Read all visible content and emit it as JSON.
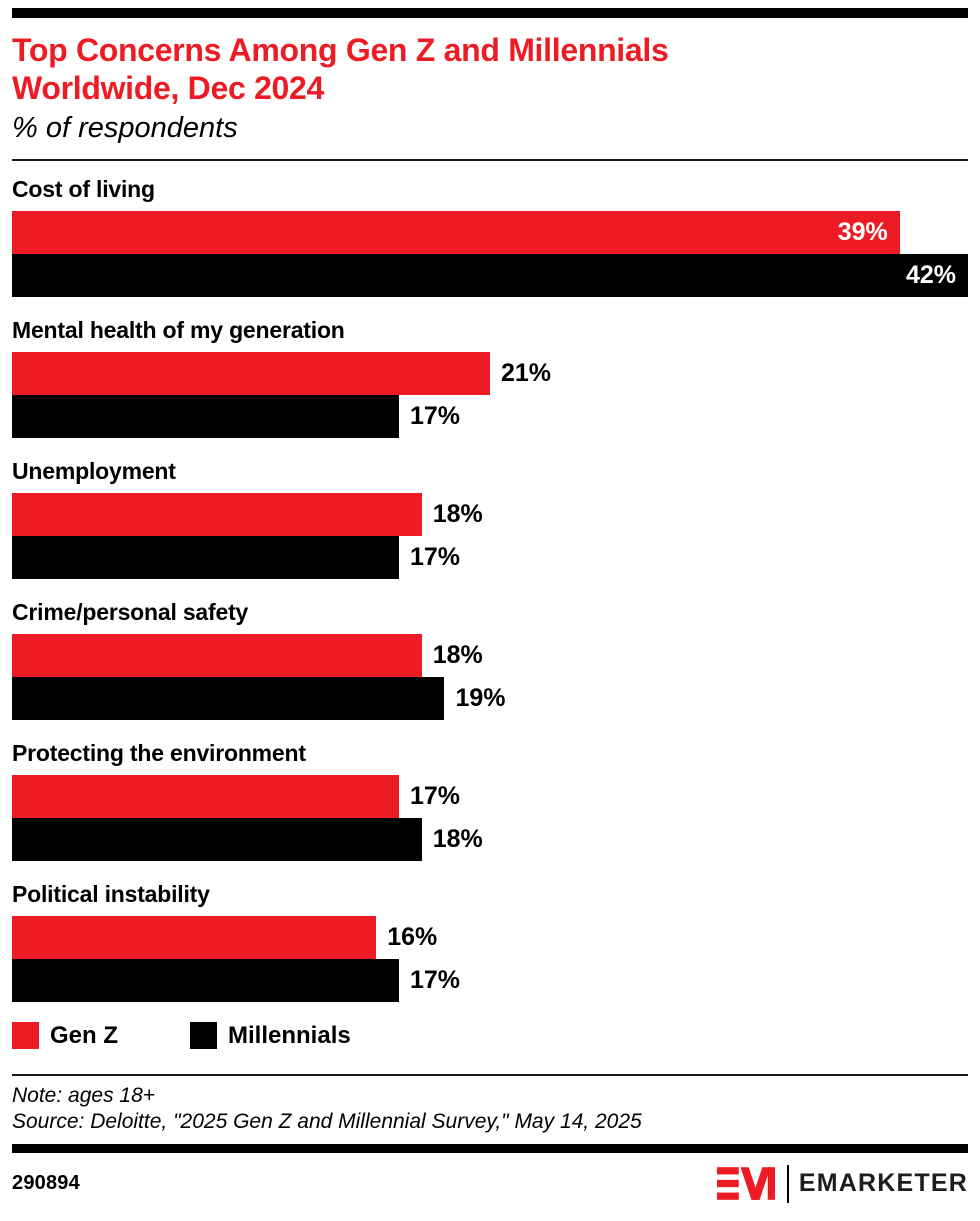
{
  "header": {
    "title_lines": [
      "Top Concerns Among Gen Z and Millennials",
      "Worldwide, Dec 2024"
    ],
    "subtitle": "% of respondents"
  },
  "chart_data": {
    "type": "bar",
    "orientation": "horizontal",
    "unit": "%",
    "title": "Top Concerns Among Gen Z and Millennials Worldwide, Dec 2024",
    "subtitle": "% of respondents",
    "categories": [
      "Cost of living",
      "Mental health of my generation",
      "Unemployment",
      "Crime/personal safety",
      "Protecting the environment",
      "Political instability"
    ],
    "series": [
      {
        "name": "Gen Z",
        "color": "#ED1C24",
        "values": [
          39,
          21,
          18,
          18,
          17,
          16
        ]
      },
      {
        "name": "Millennials",
        "color": "#000000",
        "values": [
          42,
          17,
          17,
          19,
          18,
          17
        ]
      }
    ],
    "xlim": [
      0,
      42
    ],
    "grid": false,
    "value_labels": "bar-end",
    "legend_position": "bottom-left"
  },
  "legend": {
    "items": [
      {
        "label": "Gen Z",
        "color": "#ED1C24"
      },
      {
        "label": "Millennials",
        "color": "#000000"
      }
    ]
  },
  "footnotes": {
    "note": "Note: ages 18+",
    "source": "Source: Deloitte, \"2025 Gen Z and Millennial Survey,\" May 14, 2025"
  },
  "footer": {
    "chart_id": "290894",
    "brand": "EMARKETER"
  },
  "colors": {
    "accent_red": "#ED1C24",
    "bar_black": "#000000"
  }
}
